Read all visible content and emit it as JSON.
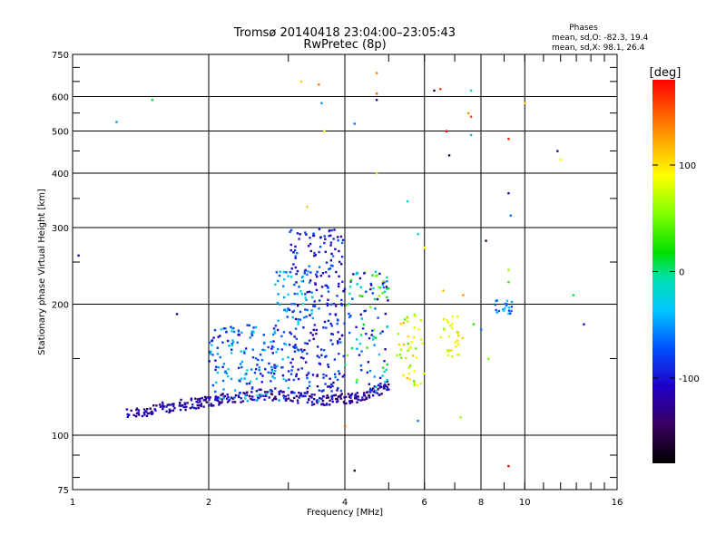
{
  "chart_data": {
    "type": "scatter",
    "title": "Tromsø 20140418 23:04:00–23:05:43",
    "subtitle": "RwPretec (8p)",
    "stats": {
      "heading": "Phases",
      "line1": "mean, sd,O: -82.3, 19.4",
      "line2": "mean, sd,X:  98.1, 26.4"
    },
    "xlabel": "Frequency [MHz]",
    "ylabel": "Stationary phase Virtual Height [km]",
    "x_scale": "log",
    "y_scale": "log",
    "xlim": [
      1,
      16
    ],
    "ylim": [
      75,
      750
    ],
    "x_ticks": [
      1,
      2,
      4,
      6,
      8,
      10,
      16
    ],
    "y_ticks": [
      75,
      100,
      200,
      300,
      400,
      500,
      600,
      750
    ],
    "grid": true,
    "colorbar": {
      "label": "[deg]",
      "range": [
        -180,
        180
      ],
      "ticks": [
        100,
        0,
        -100
      ]
    },
    "main_trace": [
      [
        1.3,
        112
      ],
      [
        1.4,
        113
      ],
      [
        1.5,
        114
      ],
      [
        1.6,
        116
      ],
      [
        1.7,
        117
      ],
      [
        1.8,
        118
      ],
      [
        1.9,
        119
      ],
      [
        2.0,
        120
      ],
      [
        2.1,
        121
      ],
      [
        2.2,
        122
      ],
      [
        2.4,
        123
      ],
      [
        2.6,
        124
      ],
      [
        2.8,
        124
      ],
      [
        3.0,
        123
      ],
      [
        3.2,
        122
      ],
      [
        3.4,
        121
      ],
      [
        3.6,
        121
      ],
      [
        3.8,
        121
      ],
      [
        4.0,
        122
      ],
      [
        4.2,
        122
      ],
      [
        4.4,
        123
      ],
      [
        4.6,
        125
      ],
      [
        4.8,
        128
      ],
      [
        5.0,
        130
      ]
    ],
    "cloud_regions": [
      {
        "xrange": [
          2.0,
          3.0
        ],
        "yrange": [
          120,
          180
        ],
        "phase_range": [
          -110,
          -20
        ],
        "count": 180
      },
      {
        "xrange": [
          3.0,
          4.0
        ],
        "yrange": [
          125,
          300
        ],
        "phase_range": [
          -130,
          -60
        ],
        "count": 260
      },
      {
        "xrange": [
          2.8,
          3.4
        ],
        "yrange": [
          180,
          240
        ],
        "phase_range": [
          -80,
          -20
        ],
        "count": 50
      },
      {
        "xrange": [
          4.0,
          5.0
        ],
        "yrange": [
          125,
          240
        ],
        "phase_range": [
          -130,
          60
        ],
        "count": 110
      },
      {
        "xrange": [
          5.2,
          6.0
        ],
        "yrange": [
          130,
          190
        ],
        "phase_range": [
          40,
          120
        ],
        "count": 45
      },
      {
        "xrange": [
          6.5,
          7.3
        ],
        "yrange": [
          150,
          190
        ],
        "phase_range": [
          60,
          110
        ],
        "count": 30
      },
      {
        "xrange": [
          8.6,
          9.4
        ],
        "yrange": [
          190,
          205
        ],
        "phase_range": [
          -80,
          -30
        ],
        "count": 22
      }
    ],
    "sparse_points": [
      [
        1.03,
        259,
        -110
      ],
      [
        1.25,
        525,
        -50
      ],
      [
        1.5,
        590,
        10
      ],
      [
        1.7,
        190,
        -120
      ],
      [
        3.2,
        650,
        110
      ],
      [
        3.5,
        640,
        140
      ],
      [
        3.55,
        580,
        -50
      ],
      [
        3.6,
        500,
        90
      ],
      [
        4.7,
        680,
        140
      ],
      [
        4.7,
        610,
        150
      ],
      [
        4.7,
        590,
        -130
      ],
      [
        4.7,
        400,
        100
      ],
      [
        4.2,
        520,
        -60
      ],
      [
        6.3,
        620,
        -150
      ],
      [
        6.5,
        625,
        160
      ],
      [
        6.7,
        500,
        180
      ],
      [
        6.8,
        440,
        -160
      ],
      [
        7.5,
        550,
        130
      ],
      [
        7.6,
        620,
        -10
      ],
      [
        7.6,
        540,
        160
      ],
      [
        7.6,
        490,
        -40
      ],
      [
        8.2,
        280,
        -150
      ],
      [
        9.2,
        480,
        170
      ],
      [
        9.2,
        360,
        -120
      ],
      [
        9.3,
        320,
        -60
      ],
      [
        10.0,
        580,
        110
      ],
      [
        11.8,
        450,
        -120
      ],
      [
        12.0,
        430,
        90
      ],
      [
        12.8,
        210,
        10
      ],
      [
        13.5,
        180,
        -110
      ],
      [
        4.2,
        83,
        -150
      ],
      [
        9.2,
        85,
        180
      ],
      [
        4.0,
        105,
        150
      ],
      [
        5.8,
        290,
        -20
      ],
      [
        6.0,
        270,
        90
      ],
      [
        6.6,
        215,
        120
      ],
      [
        7.3,
        210,
        130
      ],
      [
        7.7,
        180,
        30
      ],
      [
        8.0,
        175,
        -60
      ],
      [
        9.2,
        240,
        60
      ],
      [
        9.2,
        225,
        30
      ],
      [
        8.3,
        150,
        50
      ],
      [
        7.2,
        110,
        60
      ],
      [
        5.8,
        108,
        -60
      ],
      [
        5.5,
        345,
        -20
      ],
      [
        3.3,
        335,
        110
      ],
      [
        3.5,
        120,
        -30
      ]
    ]
  }
}
